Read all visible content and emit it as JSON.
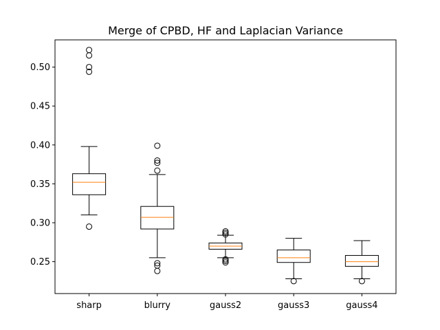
{
  "chart_data": {
    "type": "boxplot",
    "title": "Merge of CPBD, HF and Laplacian Variance",
    "xlabel": "",
    "ylabel": "",
    "ylim": [
      0.209,
      0.535
    ],
    "yticks": [
      0.25,
      0.3,
      0.35,
      0.4,
      0.45,
      0.5
    ],
    "ytick_labels": [
      "0.25",
      "0.30",
      "0.35",
      "0.40",
      "0.45",
      "0.50"
    ],
    "grid": false,
    "legend": "none",
    "categories": [
      "sharp",
      "blurry",
      "gauss2",
      "gauss3",
      "gauss4"
    ],
    "boxes": [
      {
        "label": "sharp",
        "whislo": 0.31,
        "q1": 0.336,
        "med": 0.352,
        "q3": 0.363,
        "whishi": 0.398,
        "fliers": [
          0.295,
          0.494,
          0.5,
          0.515,
          0.522
        ]
      },
      {
        "label": "blurry",
        "whislo": 0.255,
        "q1": 0.292,
        "med": 0.307,
        "q3": 0.321,
        "whishi": 0.362,
        "fliers": [
          0.238,
          0.245,
          0.248,
          0.367,
          0.377,
          0.38,
          0.399
        ]
      },
      {
        "label": "gauss2",
        "whislo": 0.255,
        "q1": 0.266,
        "med": 0.27,
        "q3": 0.274,
        "whishi": 0.284,
        "fliers": [
          0.249,
          0.251,
          0.253,
          0.285,
          0.287,
          0.289
        ]
      },
      {
        "label": "gauss3",
        "whislo": 0.228,
        "q1": 0.249,
        "med": 0.255,
        "q3": 0.265,
        "whishi": 0.28,
        "fliers": [
          0.225
        ]
      },
      {
        "label": "gauss4",
        "whislo": 0.228,
        "q1": 0.244,
        "med": 0.25,
        "q3": 0.258,
        "whishi": 0.277,
        "fliers": [
          0.225
        ]
      }
    ],
    "colors": {
      "box": "#000000",
      "median": "#ff7f0e",
      "flier": "#000000"
    }
  }
}
